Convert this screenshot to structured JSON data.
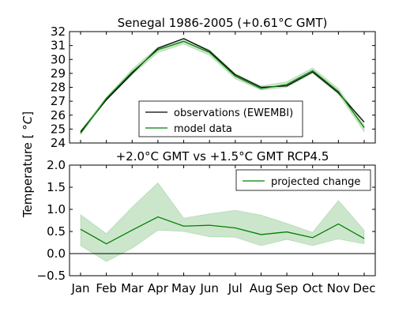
{
  "figure": {
    "ylabel": "Temperature [$^\\circ C$]"
  },
  "chart_data": [
    {
      "type": "line",
      "title": "Senegal  1986-2005 (+0.61°C GMT)",
      "categories": [
        "Jan",
        "Feb",
        "Mar",
        "Apr",
        "May",
        "Jun",
        "Jul",
        "Aug",
        "Sep",
        "Oct",
        "Nov",
        "Dec"
      ],
      "ylim": [
        24,
        32
      ],
      "yticks": [
        "24",
        "25",
        "26",
        "27",
        "28",
        "29",
        "30",
        "31",
        "32"
      ],
      "series": [
        {
          "name": "observations (EWEMBI)",
          "color": "#000000",
          "values": [
            24.8,
            27.1,
            29.0,
            30.8,
            31.5,
            30.6,
            28.9,
            28.0,
            28.1,
            29.1,
            27.6,
            25.5
          ],
          "lower": [
            24.8,
            27.1,
            29.0,
            30.8,
            31.5,
            30.6,
            28.9,
            28.0,
            28.1,
            29.1,
            27.6,
            25.5
          ],
          "upper": [
            24.8,
            27.1,
            29.0,
            30.8,
            31.5,
            30.6,
            28.9,
            28.0,
            28.1,
            29.1,
            27.6,
            25.5
          ]
        },
        {
          "name": "model data",
          "color": "#008000",
          "values": [
            24.7,
            27.2,
            29.1,
            30.7,
            31.3,
            30.5,
            28.8,
            27.9,
            28.2,
            29.2,
            27.7,
            25.1
          ],
          "lower": [
            24.6,
            27.1,
            28.9,
            30.5,
            31.1,
            30.3,
            28.6,
            27.8,
            28.0,
            29.0,
            27.5,
            24.8
          ],
          "upper": [
            24.9,
            27.3,
            29.3,
            30.9,
            31.5,
            30.7,
            29.0,
            28.1,
            28.4,
            29.4,
            27.9,
            25.3
          ]
        }
      ],
      "legend": "lower-center",
      "grid": false
    },
    {
      "type": "line",
      "title": "+2.0°C GMT vs +1.5°C GMT RCP4.5",
      "categories": [
        "Jan",
        "Feb",
        "Mar",
        "Apr",
        "May",
        "Jun",
        "Jul",
        "Aug",
        "Sep",
        "Oct",
        "Nov",
        "Dec"
      ],
      "ylim": [
        -0.5,
        2.0
      ],
      "yticks": [
        "−0.5",
        "0.0",
        "0.5",
        "1.0",
        "1.5",
        "2.0"
      ],
      "series": [
        {
          "name": "projected change",
          "color": "#008000",
          "values": [
            0.55,
            0.22,
            0.53,
            0.83,
            0.62,
            0.64,
            0.58,
            0.43,
            0.49,
            0.36,
            0.67,
            0.34
          ],
          "lower": [
            0.18,
            -0.18,
            0.12,
            0.53,
            0.5,
            0.38,
            0.37,
            0.18,
            0.32,
            0.18,
            0.33,
            0.22
          ],
          "upper": [
            0.88,
            0.45,
            1.05,
            1.6,
            0.8,
            0.9,
            0.98,
            0.87,
            0.68,
            0.48,
            1.2,
            0.53
          ]
        }
      ],
      "reference_line": 0,
      "legend": "upper-right",
      "grid": false
    }
  ]
}
